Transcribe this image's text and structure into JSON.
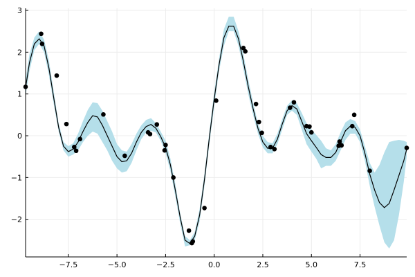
{
  "chart_data": {
    "type": "line",
    "title": "",
    "xlabel": "",
    "ylabel": "",
    "xlim": [
      -9.7,
      9.9
    ],
    "ylim": [
      -2.9,
      3.05
    ],
    "grid": true,
    "legend": "none",
    "x_ticks": [
      -7.5,
      -5.0,
      -2.5,
      0.0,
      2.5,
      5.0,
      7.5
    ],
    "x_tick_labels": [
      "−7.5",
      "−5.0",
      "−2.5",
      "0.0",
      "2.5",
      "5.0",
      "7.5"
    ],
    "y_ticks": [
      -2,
      -1,
      0,
      1,
      2,
      3
    ],
    "y_tick_labels": [
      "−2",
      "−1",
      "0",
      "1",
      "2",
      "3"
    ],
    "colors": {
      "band": "#b5dfea",
      "line": "#000000",
      "points": "#000000",
      "grid": "#ececec",
      "axis": "#000000"
    },
    "series": [
      {
        "kind": "band",
        "x": [
          -9.7,
          -9.5,
          -9.25,
          -9.0,
          -8.75,
          -8.5,
          -8.25,
          -8.0,
          -7.75,
          -7.5,
          -7.25,
          -7.0,
          -6.75,
          -6.5,
          -6.25,
          -6.0,
          -5.75,
          -5.5,
          -5.25,
          -5.0,
          -4.75,
          -4.5,
          -4.25,
          -4.0,
          -3.75,
          -3.5,
          -3.25,
          -3.0,
          -2.75,
          -2.5,
          -2.25,
          -2.0,
          -1.75,
          -1.5,
          -1.25,
          -1.0,
          -0.75,
          -0.5,
          -0.25,
          0.0,
          0.25,
          0.5,
          0.75,
          1.0,
          1.25,
          1.5,
          1.75,
          2.0,
          2.25,
          2.5,
          2.75,
          3.0,
          3.25,
          3.5,
          3.75,
          4.0,
          4.25,
          4.5,
          4.75,
          5.0,
          5.25,
          5.5,
          5.75,
          6.0,
          6.25,
          6.5,
          6.75,
          7.0,
          7.25,
          7.5,
          7.75,
          8.0,
          8.25,
          8.5,
          8.75,
          9.0,
          9.25,
          9.5,
          9.75,
          9.9
        ],
        "upper": [
          1.35,
          1.95,
          2.35,
          2.5,
          2.3,
          1.8,
          1.05,
          0.3,
          -0.15,
          -0.25,
          -0.18,
          0.05,
          0.35,
          0.62,
          0.8,
          0.78,
          0.6,
          0.35,
          0.1,
          -0.2,
          -0.35,
          -0.38,
          -0.2,
          0.05,
          0.25,
          0.38,
          0.42,
          0.3,
          0.1,
          -0.12,
          -0.55,
          -1.15,
          -1.85,
          -2.4,
          -2.5,
          -2.3,
          -1.75,
          -0.9,
          0.1,
          1.05,
          1.85,
          2.55,
          2.85,
          2.85,
          2.5,
          1.95,
          1.35,
          0.8,
          0.3,
          0.0,
          -0.15,
          -0.18,
          0.05,
          0.4,
          0.72,
          0.85,
          0.78,
          0.55,
          0.3,
          0.15,
          0.02,
          -0.12,
          -0.3,
          -0.35,
          -0.2,
          0.08,
          0.32,
          0.4,
          0.35,
          0.15,
          -0.25,
          -0.65,
          -0.88,
          -0.7,
          -0.4,
          -0.15,
          -0.12,
          -0.1,
          -0.12,
          -0.15
        ],
        "lower": [
          0.95,
          1.55,
          2.05,
          2.2,
          2.0,
          1.45,
          0.75,
          0.1,
          -0.35,
          -0.5,
          -0.45,
          -0.35,
          -0.15,
          0.0,
          0.1,
          0.05,
          -0.15,
          -0.35,
          -0.6,
          -0.78,
          -0.88,
          -0.85,
          -0.65,
          -0.35,
          -0.08,
          0.08,
          0.12,
          0.08,
          -0.12,
          -0.42,
          -0.85,
          -1.45,
          -2.1,
          -2.65,
          -2.62,
          -2.5,
          -2.05,
          -1.2,
          -0.2,
          0.7,
          1.55,
          2.15,
          2.5,
          2.5,
          2.15,
          1.6,
          1.0,
          0.5,
          0.05,
          -0.28,
          -0.42,
          -0.42,
          -0.2,
          0.15,
          0.5,
          0.6,
          0.5,
          0.15,
          -0.2,
          -0.38,
          -0.55,
          -0.78,
          -0.72,
          -0.72,
          -0.6,
          -0.35,
          -0.1,
          0.05,
          0.05,
          -0.15,
          -0.6,
          -1.2,
          -1.7,
          -2.15,
          -2.55,
          -2.7,
          -2.5,
          -1.9,
          -1.1,
          -0.5
        ]
      },
      {
        "kind": "line",
        "x": [
          -9.7,
          -9.5,
          -9.25,
          -9.0,
          -8.75,
          -8.5,
          -8.25,
          -8.0,
          -7.75,
          -7.5,
          -7.25,
          -7.0,
          -6.75,
          -6.5,
          -6.25,
          -6.0,
          -5.75,
          -5.5,
          -5.25,
          -5.0,
          -4.75,
          -4.5,
          -4.25,
          -4.0,
          -3.75,
          -3.5,
          -3.25,
          -3.0,
          -2.75,
          -2.5,
          -2.25,
          -2.0,
          -1.75,
          -1.5,
          -1.25,
          -1.0,
          -0.75,
          -0.5,
          -0.25,
          0.0,
          0.25,
          0.5,
          0.75,
          1.0,
          1.25,
          1.5,
          1.75,
          2.0,
          2.25,
          2.5,
          2.75,
          3.0,
          3.25,
          3.5,
          3.75,
          4.0,
          4.25,
          4.5,
          4.75,
          5.0,
          5.25,
          5.5,
          5.75,
          6.0,
          6.25,
          6.5,
          6.75,
          7.0,
          7.25,
          7.5,
          7.75,
          8.0,
          8.25,
          8.5,
          8.75,
          9.0,
          9.25,
          9.5,
          9.75,
          9.9
        ],
        "y": [
          1.15,
          1.75,
          2.2,
          2.32,
          2.15,
          1.62,
          0.9,
          0.2,
          -0.25,
          -0.38,
          -0.32,
          -0.15,
          0.1,
          0.32,
          0.48,
          0.45,
          0.25,
          0.0,
          -0.25,
          -0.5,
          -0.62,
          -0.6,
          -0.42,
          -0.15,
          0.08,
          0.22,
          0.27,
          0.18,
          -0.02,
          -0.28,
          -0.7,
          -1.3,
          -1.95,
          -2.5,
          -2.58,
          -2.4,
          -1.9,
          -1.05,
          -0.05,
          0.88,
          1.7,
          2.35,
          2.62,
          2.62,
          2.32,
          1.78,
          1.18,
          0.65,
          0.18,
          -0.15,
          -0.3,
          -0.3,
          -0.08,
          0.28,
          0.6,
          0.72,
          0.64,
          0.35,
          0.05,
          -0.12,
          -0.28,
          -0.45,
          -0.52,
          -0.52,
          -0.4,
          -0.14,
          0.12,
          0.23,
          0.2,
          0.0,
          -0.42,
          -0.92,
          -1.3,
          -1.6,
          -1.72,
          -1.62,
          -1.3,
          -0.95,
          -0.6,
          -0.32
        ]
      },
      {
        "kind": "scatter",
        "x": [
          -9.7,
          -8.9,
          -8.85,
          -8.1,
          -7.6,
          -7.2,
          -7.1,
          -6.9,
          -5.7,
          -4.6,
          -3.4,
          -3.3,
          -2.95,
          -2.55,
          -2.5,
          -2.1,
          -1.3,
          -1.15,
          -1.1,
          -0.5,
          0.1,
          1.5,
          1.6,
          2.15,
          2.3,
          2.45,
          2.9,
          3.1,
          3.9,
          4.1,
          4.75,
          4.9,
          5.0,
          6.4,
          6.45,
          6.55,
          7.1,
          7.2,
          8.0,
          9.9
        ],
        "y": [
          1.17,
          2.44,
          2.2,
          1.44,
          0.28,
          -0.27,
          -0.36,
          -0.08,
          0.51,
          -0.48,
          0.08,
          0.04,
          0.27,
          -0.35,
          -0.22,
          -1.0,
          -2.27,
          -2.57,
          -2.53,
          -1.73,
          0.84,
          2.1,
          2.02,
          0.76,
          0.33,
          0.07,
          -0.27,
          -0.32,
          0.67,
          0.8,
          0.23,
          0.22,
          0.08,
          -0.24,
          -0.14,
          -0.23,
          0.23,
          0.5,
          -0.84,
          -0.29
        ]
      }
    ]
  }
}
